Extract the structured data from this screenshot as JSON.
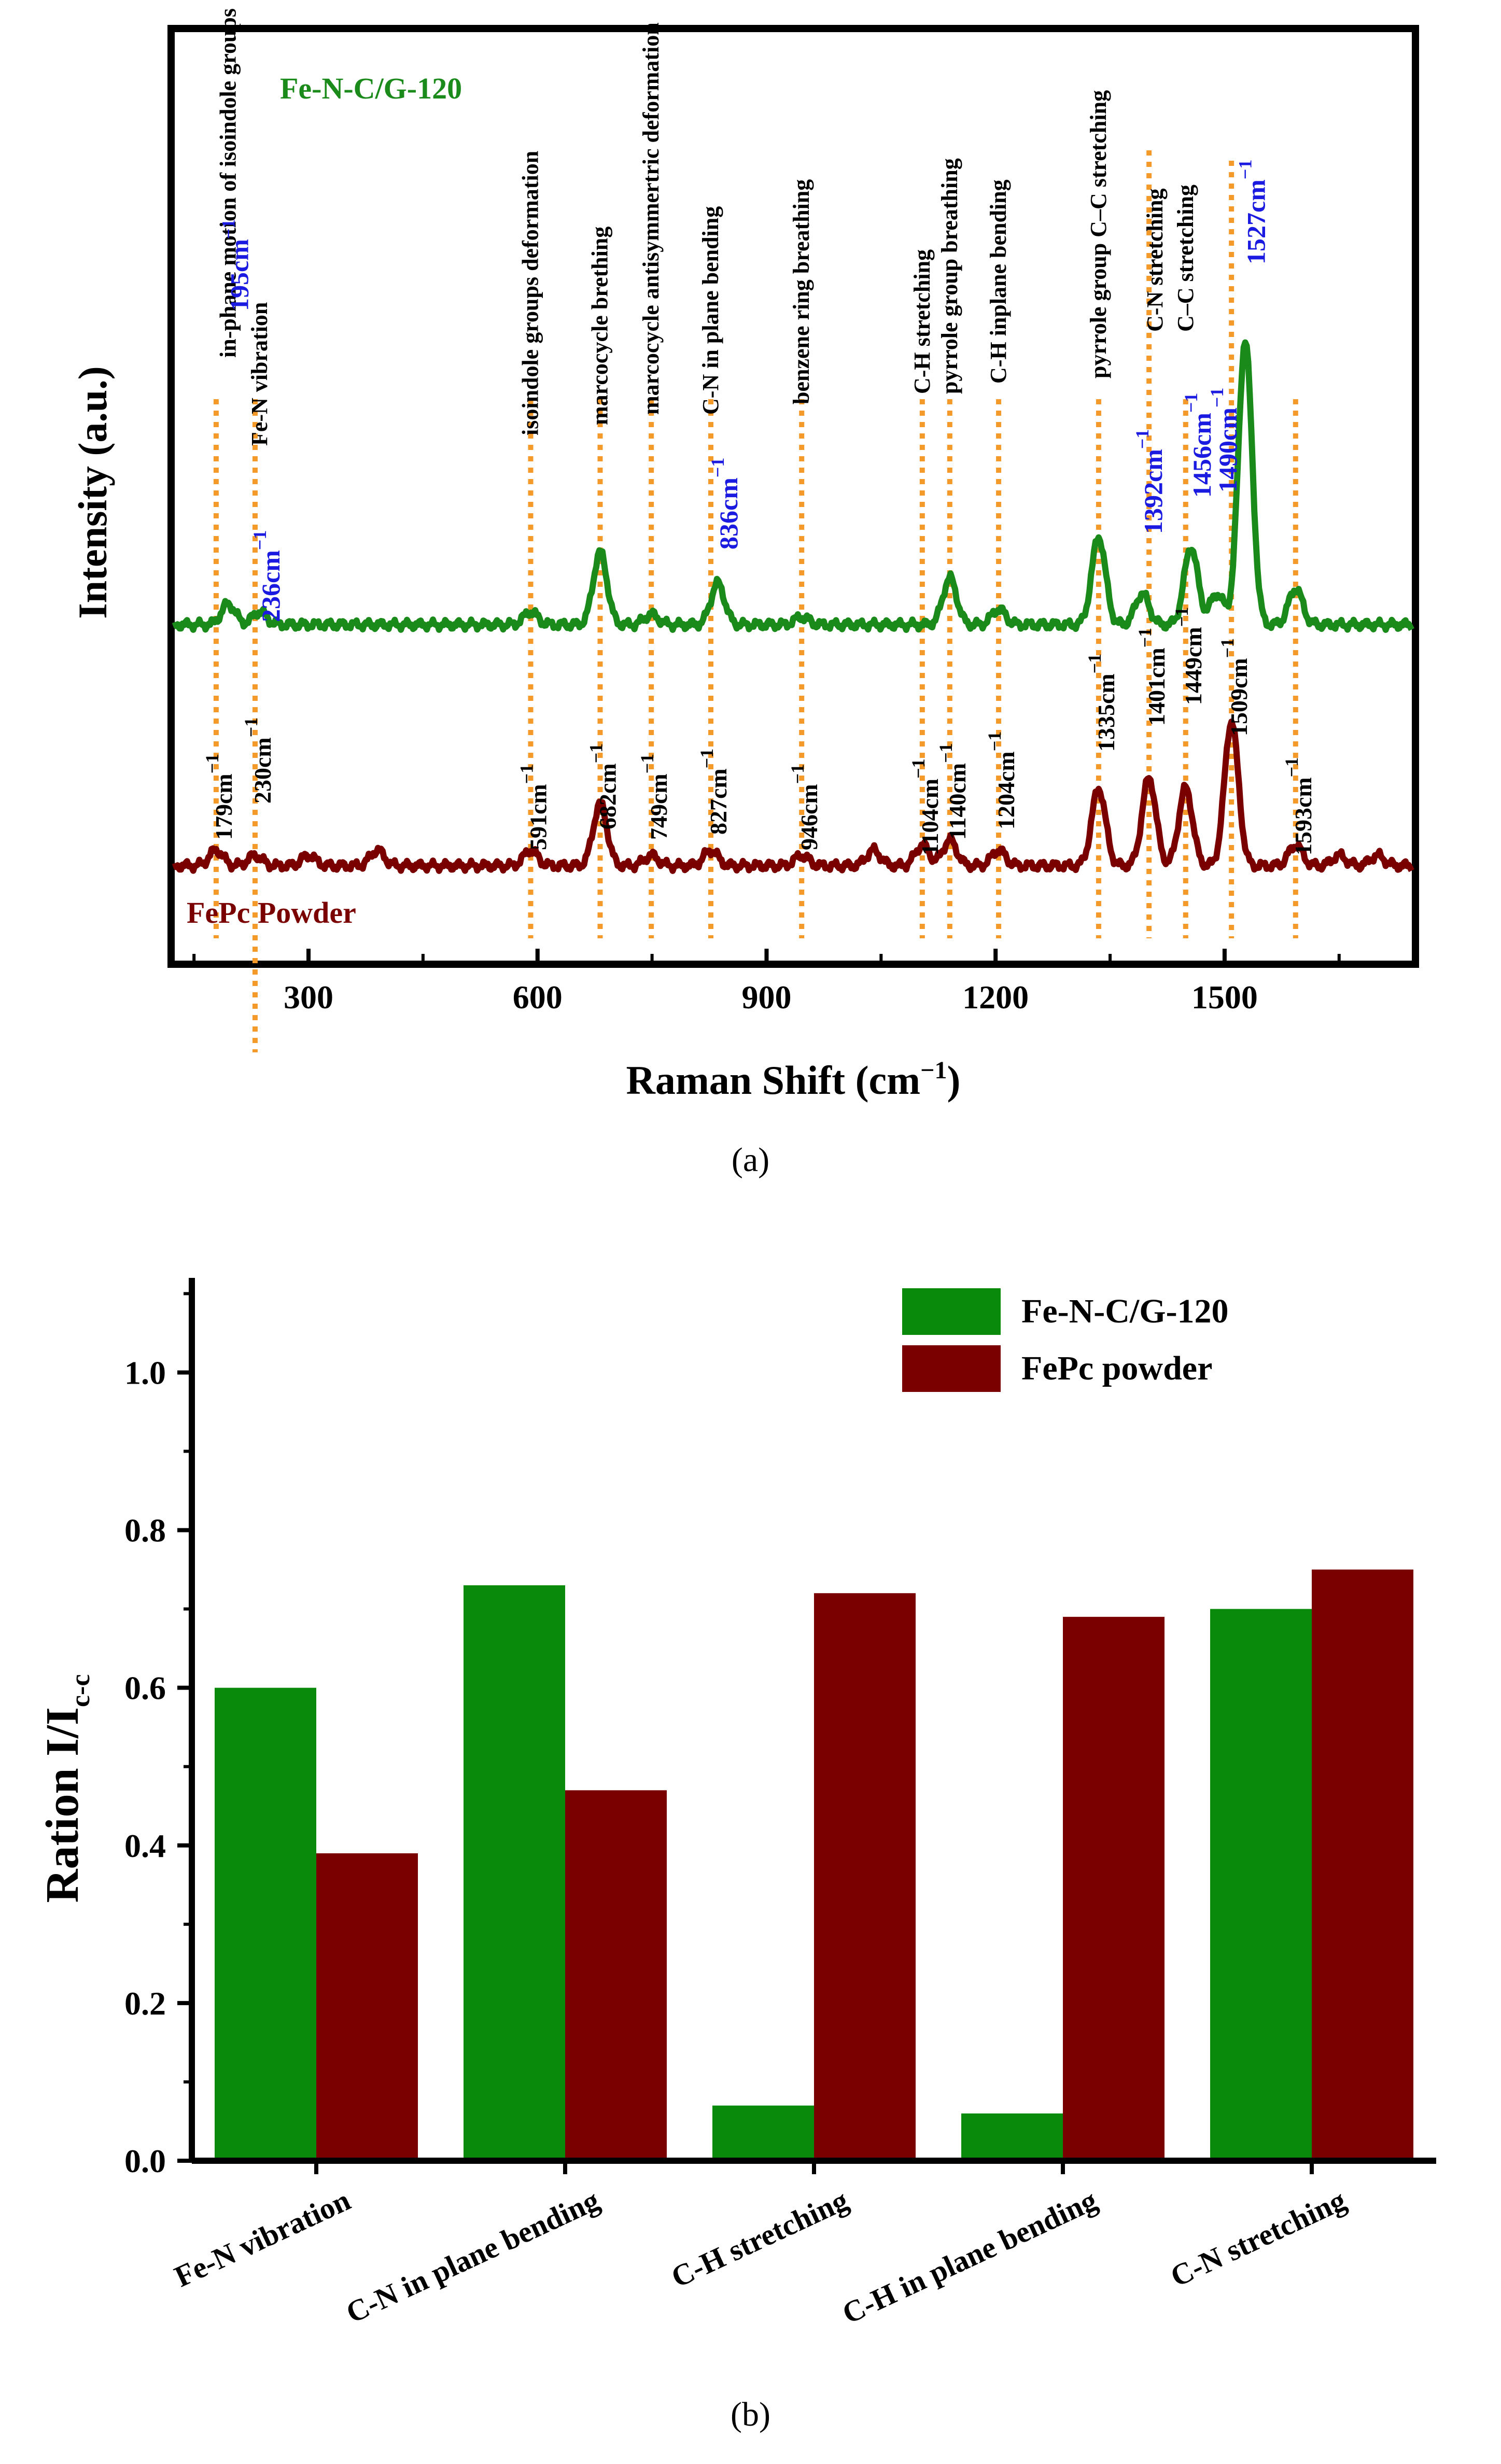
{
  "chart_data": [
    {
      "type": "line",
      "panel": "(a)",
      "xlabel": "Raman Shift (cm",
      "xlabel_sup": "−1",
      "xlabel_end": ")",
      "ylabel": "Intensity (a.u.)",
      "xlim": [
        120,
        1750
      ],
      "xticks": [
        300,
        600,
        900,
        1200,
        1500
      ],
      "grid": false,
      "series": [
        {
          "name": "Fe-N-C/G-120",
          "color": "#1a8a1a",
          "baseline": 0.55,
          "peaks": [
            [
              195,
              0.04
            ],
            [
              236,
              0.025
            ],
            [
              591,
              0.025
            ],
            [
              682,
              0.14
            ],
            [
              749,
              0.02
            ],
            [
              836,
              0.08
            ],
            [
              946,
              0.015
            ],
            [
              1140,
              0.09
            ],
            [
              1204,
              0.03
            ],
            [
              1335,
              0.17
            ],
            [
              1392,
              0.06
            ],
            [
              1456,
              0.15
            ],
            [
              1490,
              0.06
            ],
            [
              1527,
              0.55
            ],
            [
              1593,
              0.07
            ]
          ],
          "labels": [
            {
              "x": 195,
              "text": "195cm",
              "sup": "−1"
            },
            {
              "x": 236,
              "text": "236cm",
              "sup": "−1"
            },
            {
              "x": 836,
              "text": "836cm",
              "sup": "−1"
            },
            {
              "x": 1392,
              "text": "1392cm",
              "sup": "−1"
            },
            {
              "x": 1456,
              "text": "1456cm",
              "sup": "−1"
            },
            {
              "x": 1490,
              "text": "1490cm",
              "sup": "−1"
            },
            {
              "x": 1527,
              "text": "1527cm",
              "sup": "−1"
            }
          ]
        },
        {
          "name": "FePc Powder",
          "color": "#7a0000",
          "baseline": 0.0,
          "peaks": [
            [
              179,
              0.03
            ],
            [
              230,
              0.02
            ],
            [
              300,
              0.02
            ],
            [
              390,
              0.03
            ],
            [
              591,
              0.03
            ],
            [
              682,
              0.12
            ],
            [
              749,
              0.02
            ],
            [
              827,
              0.03
            ],
            [
              946,
              0.02
            ],
            [
              1040,
              0.03
            ],
            [
              1104,
              0.04
            ],
            [
              1140,
              0.05
            ],
            [
              1204,
              0.03
            ],
            [
              1335,
              0.15
            ],
            [
              1401,
              0.17
            ],
            [
              1449,
              0.15
            ],
            [
              1509,
              0.28
            ],
            [
              1593,
              0.04
            ],
            [
              1650,
              0.02
            ],
            [
              1700,
              0.02
            ]
          ],
          "labels": [
            {
              "x": 179,
              "text": "179cm",
              "sup": "−1"
            },
            {
              "x": 230,
              "text": "230cm",
              "sup": "−1"
            },
            {
              "x": 591,
              "text": "591cm",
              "sup": "−1"
            },
            {
              "x": 682,
              "text": "682cm",
              "sup": "−1"
            },
            {
              "x": 749,
              "text": "749cm",
              "sup": "−1"
            },
            {
              "x": 827,
              "text": "827cm",
              "sup": "−1"
            },
            {
              "x": 946,
              "text": "946cm",
              "sup": "−1"
            },
            {
              "x": 1104,
              "text": "1104cm",
              "sup": "−1"
            },
            {
              "x": 1140,
              "text": "1140cm",
              "sup": "−1"
            },
            {
              "x": 1204,
              "text": "1204cm",
              "sup": "−1"
            },
            {
              "x": 1335,
              "text": "1335cm",
              "sup": "−1"
            },
            {
              "x": 1401,
              "text": "1401cm",
              "sup": "−1"
            },
            {
              "x": 1449,
              "text": "1449cm",
              "sup": "−1"
            },
            {
              "x": 1509,
              "text": "1509cm",
              "sup": "−1"
            },
            {
              "x": 1593,
              "text": "1593cm",
              "sup": "−1"
            }
          ]
        }
      ],
      "reference_lines": [
        179,
        230,
        591,
        682,
        749,
        827,
        946,
        1104,
        1140,
        1204,
        1335,
        1401,
        1449,
        1509,
        1593
      ],
      "assignments": [
        {
          "x": 195,
          "text": "in-phane motion  of isoindole  groups"
        },
        {
          "x": 236,
          "text": "Fe-N vibration"
        },
        {
          "x": 591,
          "text": "isoindole  groups deformation"
        },
        {
          "x": 682,
          "text": "marcocycle brething"
        },
        {
          "x": 749,
          "text": "marcocycle antisymmertric deformation"
        },
        {
          "x": 827,
          "text": "C-N in plane bending"
        },
        {
          "x": 946,
          "text": "benzene ring breathing"
        },
        {
          "x": 1104,
          "text": "C-H stretching"
        },
        {
          "x": 1140,
          "text": "pyrrole group breathing"
        },
        {
          "x": 1204,
          "text": "C-H inplane bending"
        },
        {
          "x": 1335,
          "text": "pyrrole group C–C stretching"
        },
        {
          "x": 1401,
          "text": "C-N stretching"
        },
        {
          "x": 1449,
          "text": "C–C stretching"
        }
      ],
      "series_labels": [
        {
          "text": "Fe-N-C/G-120",
          "color": "#1a8a1a"
        },
        {
          "text": "FePc Powder",
          "color": "#7a0000"
        }
      ],
      "caption": "(a)"
    },
    {
      "type": "bar",
      "panel": "(b)",
      "categories": [
        "Fe-N vibration",
        "C-N in plane bending",
        "C-H stretching",
        "C-H in plane bending",
        "C-N stretching"
      ],
      "series": [
        {
          "name": "Fe-N-C/G-120",
          "color": "#0a8a0a",
          "values": [
            0.6,
            0.73,
            0.07,
            0.06,
            0.7
          ]
        },
        {
          "name": "FePc powder",
          "color": "#7a0000",
          "values": [
            0.39,
            0.47,
            0.72,
            0.69,
            0.75
          ]
        }
      ],
      "ylabel": "Ration I/I",
      "ylabel_sub": "c-c",
      "ylim": [
        0,
        1.12
      ],
      "yticks": [
        "0.0",
        "0.2",
        "0.4",
        "0.6",
        "0.8",
        "1.0"
      ],
      "yticks_values": [
        0,
        0.2,
        0.4,
        0.6,
        0.8,
        1.0
      ],
      "legend": "top-right",
      "caption": "(b)"
    }
  ]
}
